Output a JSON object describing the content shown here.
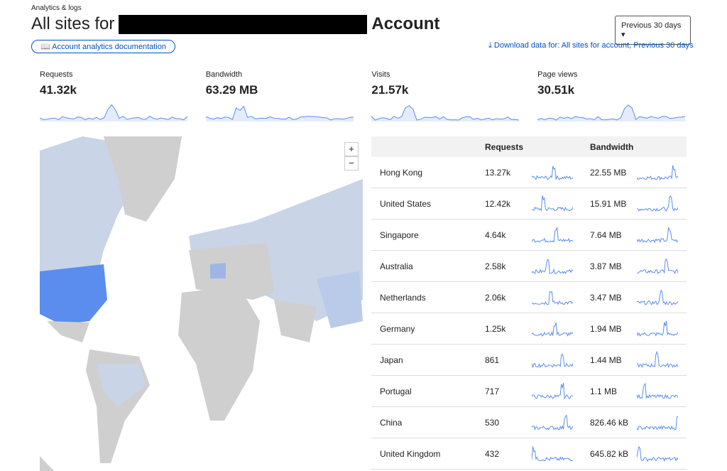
{
  "breadcrumb": "Analytics & logs",
  "header": {
    "title_prefix": "All sites for",
    "title_suffix": "Account",
    "docs_button": "Account analytics documentation",
    "period": "Previous 30 days",
    "download": "Download data for: All sites for account, Previous 30 days"
  },
  "metrics": [
    {
      "label": "Requests",
      "value": "41.32k"
    },
    {
      "label": "Bandwidth",
      "value": "63.29 MB"
    },
    {
      "label": "Visits",
      "value": "21.57k"
    },
    {
      "label": "Page views",
      "value": "30.51k"
    }
  ],
  "map": {
    "zoom_in": "+",
    "zoom_out": "−"
  },
  "table": {
    "headers": [
      "Requests",
      "Bandwidth"
    ],
    "rows": [
      [
        "Hong Kong",
        "13.27k",
        "22.55 MB"
      ],
      [
        "United States",
        "12.42k",
        "15.91 MB"
      ],
      [
        "Singapore",
        "4.64k",
        "7.64 MB"
      ],
      [
        "Australia",
        "2.58k",
        "3.87 MB"
      ],
      [
        "Netherlands",
        "2.06k",
        "3.47 MB"
      ],
      [
        "Germany",
        "1.25k",
        "1.94 MB"
      ],
      [
        "Japan",
        "861",
        "1.44 MB"
      ],
      [
        "Portugal",
        "717",
        "1.1 MB"
      ],
      [
        "China",
        "530",
        "826.46 kB"
      ],
      [
        "United Kingdom",
        "432",
        "645.82 kB"
      ]
    ]
  }
}
